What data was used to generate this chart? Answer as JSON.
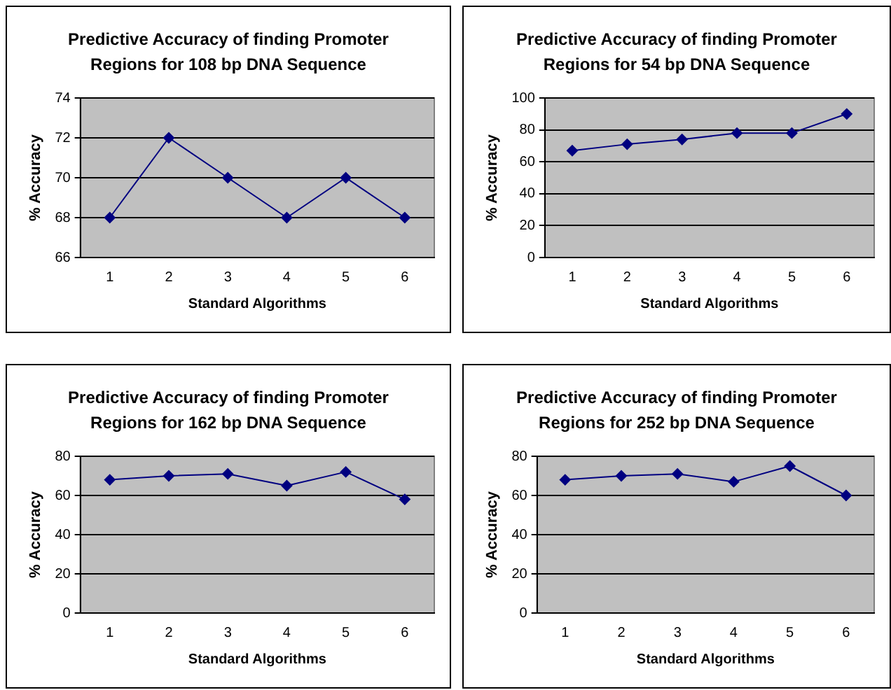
{
  "chart_data": [
    {
      "type": "line",
      "title": "Predictive Accuracy of finding Promoter Regions for 108 bp DNA Sequence",
      "xlabel": "Standard Algorithms",
      "ylabel": "% Accuracy",
      "categories": [
        "1",
        "2",
        "3",
        "4",
        "5",
        "6"
      ],
      "series": [
        {
          "color": "#000080",
          "values": [
            68,
            72,
            70,
            68,
            70,
            68
          ]
        }
      ],
      "ylim": [
        66,
        74
      ],
      "yticks": [
        66,
        68,
        70,
        72,
        74
      ],
      "grid": "y",
      "legend": false,
      "marker": "diamond",
      "line_style": "solid"
    },
    {
      "type": "line",
      "title": "Predictive Accuracy of finding Promoter Regions for 54 bp DNA Sequence",
      "xlabel": "Standard Algorithms",
      "ylabel": "% Accuracy",
      "categories": [
        "1",
        "2",
        "3",
        "4",
        "5",
        "6"
      ],
      "series": [
        {
          "color": "#000080",
          "values": [
            67,
            71,
            74,
            78,
            78,
            90
          ]
        }
      ],
      "ylim": [
        0,
        100
      ],
      "yticks": [
        0,
        20,
        40,
        60,
        80,
        100
      ],
      "grid": "y",
      "legend": false,
      "marker": "diamond",
      "line_style": "solid"
    },
    {
      "type": "line",
      "title": "Predictive Accuracy of finding Promoter Regions for 162 bp DNA Sequence",
      "xlabel": "Standard Algorithms",
      "ylabel": "% Accuracy",
      "categories": [
        "1",
        "2",
        "3",
        "4",
        "5",
        "6"
      ],
      "series": [
        {
          "color": "#000080",
          "values": [
            68,
            70,
            71,
            65,
            72,
            58
          ]
        }
      ],
      "ylim": [
        0,
        80
      ],
      "yticks": [
        0,
        20,
        40,
        60,
        80
      ],
      "grid": "y",
      "legend": false,
      "marker": "diamond",
      "line_style": "solid"
    },
    {
      "type": "line",
      "title": "Predictive Accuracy of finding Promoter Regions for 252 bp DNA Sequence",
      "xlabel": "Standard Algorithms",
      "ylabel": "% Accuracy",
      "categories": [
        "1",
        "2",
        "3",
        "4",
        "5",
        "6"
      ],
      "series": [
        {
          "color": "#000080",
          "values": [
            68,
            70,
            71,
            67,
            75,
            60
          ]
        }
      ],
      "ylim": [
        0,
        80
      ],
      "yticks": [
        0,
        20,
        40,
        60,
        80
      ],
      "grid": "y",
      "legend": false,
      "marker": "diamond",
      "line_style": "solid"
    }
  ]
}
